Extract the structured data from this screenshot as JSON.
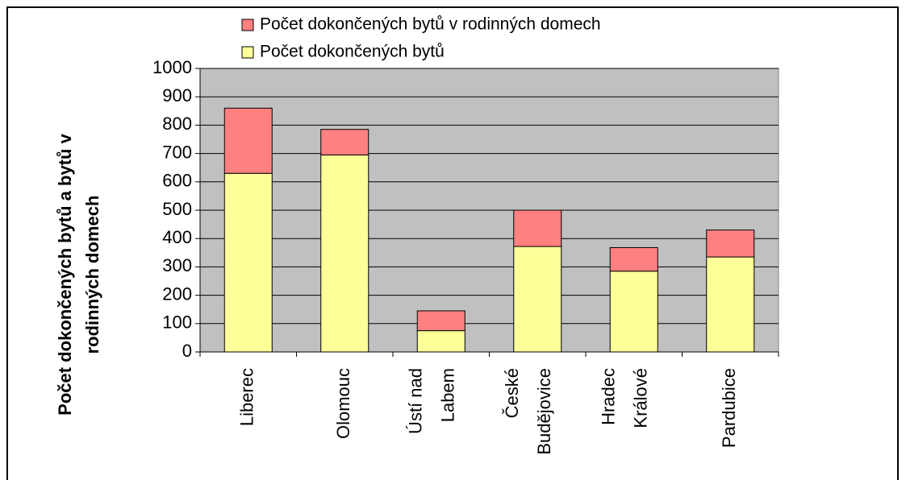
{
  "chart_data": {
    "type": "stacked-bar",
    "ylabel": [
      "Počet dokončených bytů a bytů v",
      "rodinných domech"
    ],
    "categories": [
      [
        "Liberec"
      ],
      [
        "Olomouc"
      ],
      [
        "Ústí nad",
        "Labem"
      ],
      [
        "České",
        "Budějovice"
      ],
      [
        "Hradec",
        "Králové"
      ],
      [
        "Pardubice"
      ]
    ],
    "series": [
      {
        "name": "Počet dokončených bytů",
        "color": "#ffff99",
        "values": [
          630,
          695,
          75,
          372,
          285,
          335
        ]
      },
      {
        "name": "Počet dokončených bytů v rodinných domech",
        "color": "#ff8080",
        "values": [
          230,
          90,
          70,
          128,
          83,
          95
        ]
      }
    ],
    "ylim": [
      0,
      1000
    ],
    "yticks": [
      0,
      100,
      200,
      300,
      400,
      500,
      600,
      700,
      800,
      900,
      1000
    ],
    "grid": true
  }
}
